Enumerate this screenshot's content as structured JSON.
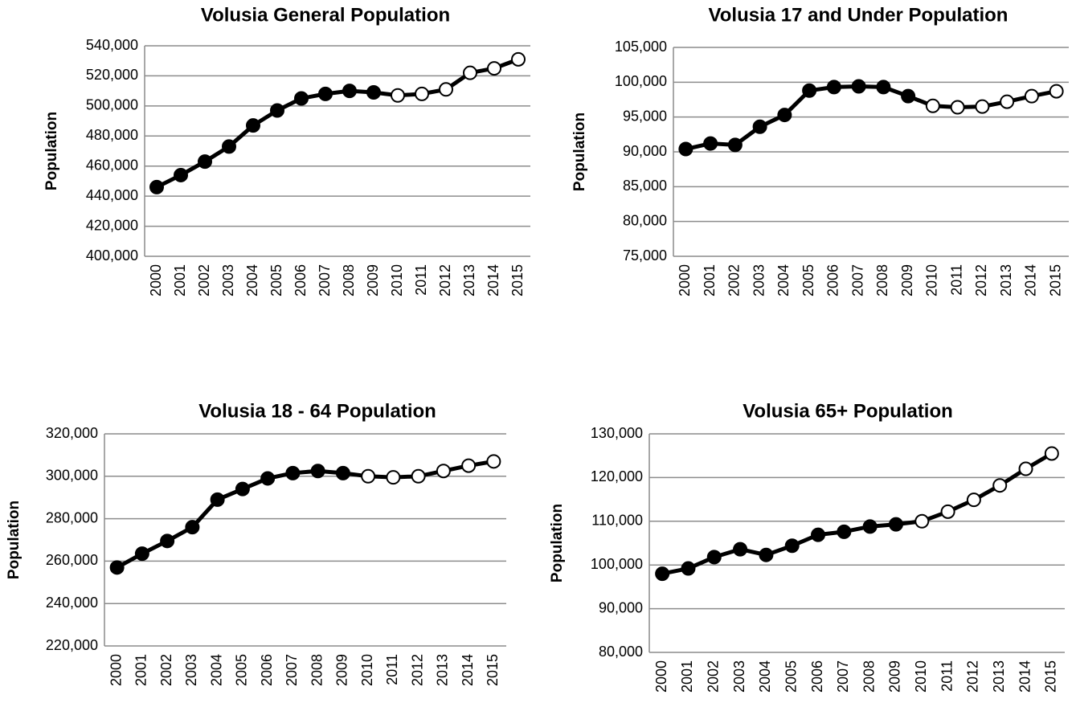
{
  "chart_data": [
    {
      "type": "line",
      "title": "Volusia General Population",
      "y_label": "Population",
      "categories": [
        "2000",
        "2001",
        "2002",
        "2003",
        "2004",
        "2005",
        "2006",
        "2007",
        "2008",
        "2009",
        "2010",
        "2011",
        "2012",
        "2013",
        "2014",
        "2015"
      ],
      "series": [
        {
          "color": "#000000",
          "values": [
            446000,
            454000,
            463000,
            473000,
            487000,
            497000,
            505000,
            508000,
            510000,
            509000,
            507000,
            508000,
            511000,
            522000,
            525000,
            531000
          ],
          "marker_colors": [
            "#000000",
            "#000000",
            "#000000",
            "#000000",
            "#000000",
            "#000000",
            "#000000",
            "#000000",
            "#000000",
            "#000000",
            "#ffffff",
            "#ffffff",
            "#ffffff",
            "#ffffff",
            "#ffffff",
            "#ffffff"
          ]
        }
      ],
      "ylim": [
        400000,
        540000
      ],
      "yticks": [
        {
          "value": 400000,
          "label": "400,000"
        },
        {
          "value": 420000,
          "label": "420,000"
        },
        {
          "value": 440000,
          "label": "440,000"
        },
        {
          "value": 460000,
          "label": "460,000"
        },
        {
          "value": 480000,
          "label": "480,000"
        },
        {
          "value": 500000,
          "label": "500,000"
        },
        {
          "value": 520000,
          "label": "520,000"
        },
        {
          "value": 540000,
          "label": "540,000"
        }
      ],
      "grid": true
    },
    {
      "type": "line",
      "title": "Volusia 17 and Under Population",
      "y_label": "Population",
      "categories": [
        "2000",
        "2001",
        "2002",
        "2003",
        "2004",
        "2005",
        "2006",
        "2007",
        "2008",
        "2009",
        "2010",
        "2011",
        "2012",
        "2013",
        "2014",
        "2015"
      ],
      "series": [
        {
          "color": "#000000",
          "values": [
            90400,
            91200,
            91000,
            93600,
            95300,
            98800,
            99300,
            99400,
            99300,
            98000,
            96600,
            96400,
            96500,
            97200,
            98000,
            98700
          ],
          "marker_colors": [
            "#000000",
            "#000000",
            "#000000",
            "#000000",
            "#000000",
            "#000000",
            "#000000",
            "#000000",
            "#000000",
            "#000000",
            "#ffffff",
            "#ffffff",
            "#ffffff",
            "#ffffff",
            "#ffffff",
            "#ffffff"
          ]
        }
      ],
      "ylim": [
        75000,
        105000
      ],
      "yticks": [
        {
          "value": 75000,
          "label": "75,000"
        },
        {
          "value": 80000,
          "label": "80,000"
        },
        {
          "value": 85000,
          "label": "85,000"
        },
        {
          "value": 90000,
          "label": "90,000"
        },
        {
          "value": 95000,
          "label": "95,000"
        },
        {
          "value": 100000,
          "label": "100,000"
        },
        {
          "value": 105000,
          "label": "105,000"
        }
      ],
      "grid": true
    },
    {
      "type": "line",
      "title": "Volusia 18 - 64 Population",
      "y_label": "Population",
      "categories": [
        "2000",
        "2001",
        "2002",
        "2003",
        "2004",
        "2005",
        "2006",
        "2007",
        "2008",
        "2009",
        "2010",
        "2011",
        "2012",
        "2013",
        "2014",
        "2015"
      ],
      "series": [
        {
          "color": "#000000",
          "values": [
            257000,
            263500,
            269500,
            276000,
            289000,
            294000,
            299000,
            301500,
            302500,
            301500,
            300000,
            299500,
            300000,
            302500,
            305000,
            307000
          ],
          "marker_colors": [
            "#000000",
            "#000000",
            "#000000",
            "#000000",
            "#000000",
            "#000000",
            "#000000",
            "#000000",
            "#000000",
            "#000000",
            "#ffffff",
            "#ffffff",
            "#ffffff",
            "#ffffff",
            "#ffffff",
            "#ffffff"
          ]
        }
      ],
      "ylim": [
        220000,
        320000
      ],
      "yticks": [
        {
          "value": 220000,
          "label": "220,000"
        },
        {
          "value": 240000,
          "label": "240,000"
        },
        {
          "value": 260000,
          "label": "260,000"
        },
        {
          "value": 280000,
          "label": "280,000"
        },
        {
          "value": 300000,
          "label": "300,000"
        },
        {
          "value": 320000,
          "label": "320,000"
        }
      ],
      "grid": true
    },
    {
      "type": "line",
      "title": "Volusia 65+ Population",
      "y_label": "Population",
      "categories": [
        "2000",
        "2001",
        "2002",
        "2003",
        "2004",
        "2005",
        "2006",
        "2007",
        "2008",
        "2009",
        "2010",
        "2011",
        "2012",
        "2013",
        "2014",
        "2015"
      ],
      "series": [
        {
          "color": "#000000",
          "values": [
            98000,
            99200,
            101800,
            103600,
            102300,
            104400,
            106900,
            107600,
            108800,
            109300,
            110000,
            112200,
            114900,
            118200,
            122000,
            125500
          ],
          "marker_colors": [
            "#000000",
            "#000000",
            "#000000",
            "#000000",
            "#000000",
            "#000000",
            "#000000",
            "#000000",
            "#000000",
            "#000000",
            "#ffffff",
            "#ffffff",
            "#ffffff",
            "#ffffff",
            "#ffffff",
            "#ffffff"
          ]
        }
      ],
      "ylim": [
        80000,
        130000
      ],
      "yticks": [
        {
          "value": 80000,
          "label": "80,000"
        },
        {
          "value": 90000,
          "label": "90,000"
        },
        {
          "value": 100000,
          "label": "100,000"
        },
        {
          "value": 110000,
          "label": "110,000"
        },
        {
          "value": 120000,
          "label": "120,000"
        },
        {
          "value": 130000,
          "label": "130,000"
        }
      ],
      "grid": true
    }
  ]
}
